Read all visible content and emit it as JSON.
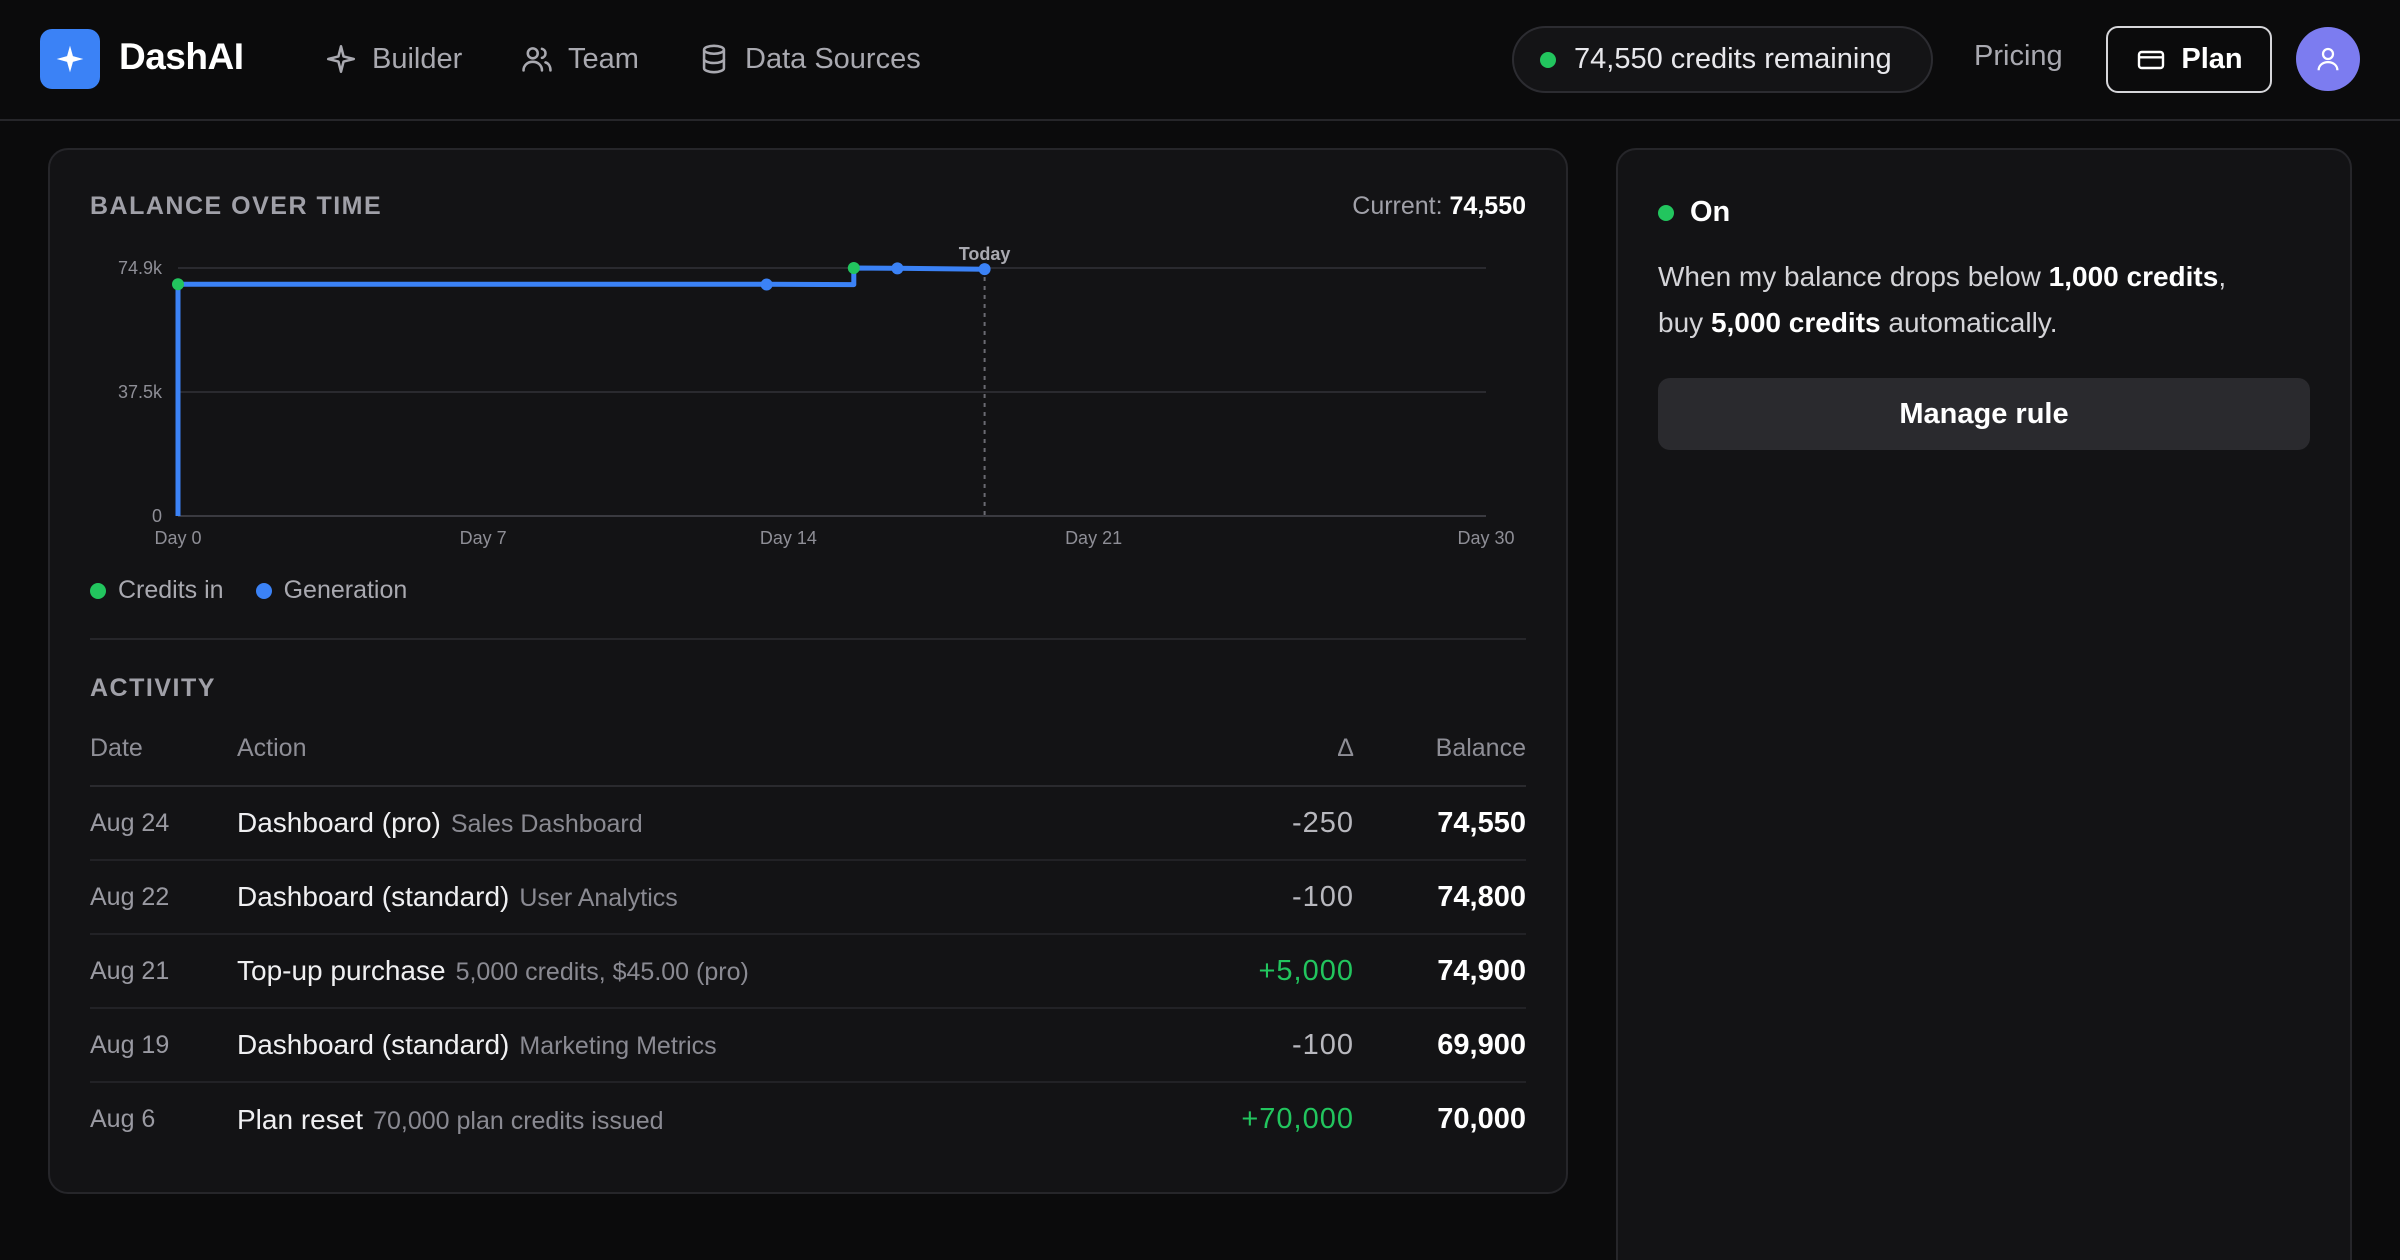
{
  "header": {
    "brand": "DashAI",
    "nav": [
      {
        "label": "Builder",
        "icon": "sparkle-icon"
      },
      {
        "label": "Team",
        "icon": "users-icon"
      },
      {
        "label": "Data Sources",
        "icon": "database-icon"
      }
    ],
    "credits_text": "74,550 credits remaining",
    "pricing_label": "Pricing",
    "plan_label": "Plan"
  },
  "balance": {
    "title": "BALANCE OVER TIME",
    "current_label": "Current:",
    "current_value": "74,550"
  },
  "chart_data": {
    "type": "line",
    "y_ticks": [
      "74.9k",
      "37.5k",
      "0"
    ],
    "x_ticks": [
      "Day 0",
      "Day 7",
      "Day 14",
      "Day 21",
      "Day 30"
    ],
    "xlim": [
      0,
      30
    ],
    "ylim": [
      0,
      74900
    ],
    "today_day": 18.5,
    "today_label": "Today",
    "series": [
      {
        "name": "Balance",
        "x": [
          0,
          0,
          13.5,
          15.5,
          15.5,
          16.5,
          18.5
        ],
        "y": [
          0,
          70000,
          70000,
          69900,
          74900,
          74800,
          74550
        ]
      }
    ],
    "markers": [
      {
        "day": 0,
        "value": 70000,
        "kind": "credits_in"
      },
      {
        "day": 13.5,
        "value": 69900,
        "kind": "generation"
      },
      {
        "day": 15.5,
        "value": 74900,
        "kind": "credits_in"
      },
      {
        "day": 16.5,
        "value": 74800,
        "kind": "generation"
      },
      {
        "day": 18.5,
        "value": 74550,
        "kind": "generation"
      }
    ],
    "legend": [
      {
        "label": "Credits in",
        "color": "#22c55e"
      },
      {
        "label": "Generation",
        "color": "#3b82f6"
      }
    ],
    "line_color": "#3b82f6"
  },
  "activity": {
    "title": "ACTIVITY",
    "columns": {
      "date": "Date",
      "action": "Action",
      "delta": "Δ",
      "balance": "Balance"
    },
    "rows": [
      {
        "date": "Aug 24",
        "action": "Dashboard (pro)",
        "detail": "Sales Dashboard",
        "delta": "-250",
        "balance": "74,550",
        "positive": false
      },
      {
        "date": "Aug 22",
        "action": "Dashboard (standard)",
        "detail": "User Analytics",
        "delta": "-100",
        "balance": "74,800",
        "positive": false
      },
      {
        "date": "Aug 21",
        "action": "Top-up purchase",
        "detail": "5,000 credits, $45.00 (pro)",
        "delta": "+5,000",
        "balance": "74,900",
        "positive": true
      },
      {
        "date": "Aug 19",
        "action": "Dashboard (standard)",
        "detail": "Marketing Metrics",
        "delta": "-100",
        "balance": "69,900",
        "positive": false
      },
      {
        "date": "Aug 6",
        "action": "Plan reset",
        "detail": "70,000 plan credits issued",
        "delta": "+70,000",
        "balance": "70,000",
        "positive": true
      }
    ]
  },
  "auto_topup": {
    "status": "On",
    "text_1": "When my balance drops below ",
    "threshold": "1,000 credits",
    "text_2": ",",
    "text_3": "buy ",
    "amount": "5,000 credits",
    "text_4": " automatically.",
    "button_label": "Manage rule"
  },
  "colors": {
    "accent": "#3b82f6",
    "positive": "#22c55e",
    "avatar": "#7c7cf0"
  }
}
